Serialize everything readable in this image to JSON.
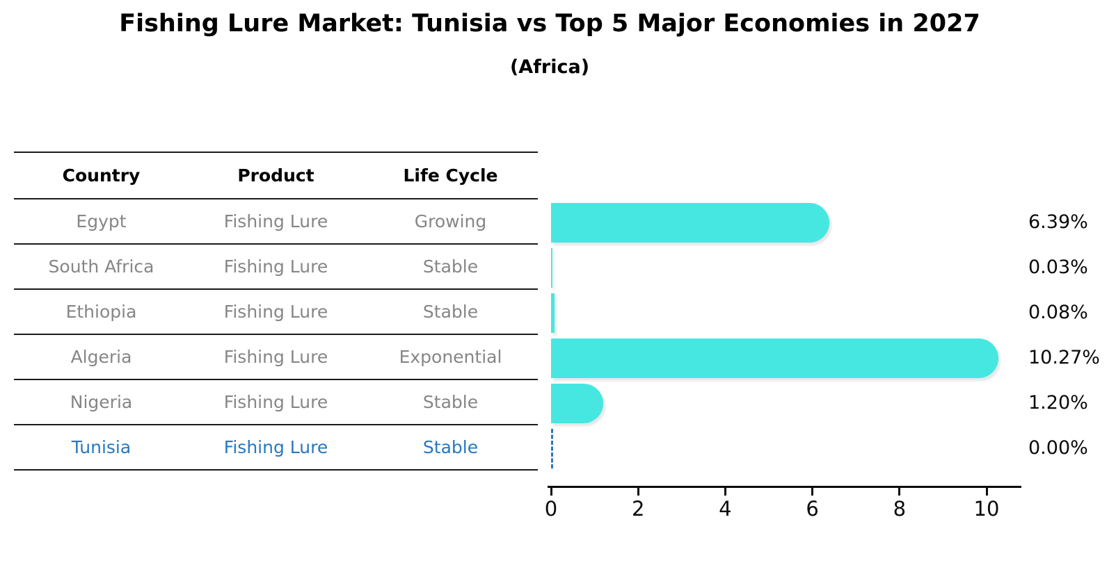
{
  "title": "Fishing Lure Market: Tunisia vs Top 5 Major Economies in 2027",
  "subtitle": "(Africa)",
  "colors": {
    "bar": "#46e7e1",
    "highlight": "#2878be",
    "table_text": "#868686",
    "axis": "#0a0a0a"
  },
  "table": {
    "headers": [
      "Country",
      "Product",
      "Life Cycle"
    ],
    "rows": [
      {
        "country": "Egypt",
        "product": "Fishing Lure",
        "life_cycle": "Growing",
        "highlight": false
      },
      {
        "country": "South Africa",
        "product": "Fishing Lure",
        "life_cycle": "Stable",
        "highlight": false
      },
      {
        "country": "Ethiopia",
        "product": "Fishing Lure",
        "life_cycle": "Stable",
        "highlight": false
      },
      {
        "country": "Algeria",
        "product": "Fishing Lure",
        "life_cycle": "Exponential",
        "highlight": false
      },
      {
        "country": "Nigeria",
        "product": "Fishing Lure",
        "life_cycle": "Stable",
        "highlight": false
      },
      {
        "country": "Tunisia",
        "product": "Fishing Lure",
        "life_cycle": "Stable",
        "highlight": true
      }
    ]
  },
  "chart_data": {
    "type": "bar",
    "orientation": "horizontal",
    "title": "Fishing Lure Market: Tunisia vs Top 5 Major Economies in 2027",
    "subtitle": "(Africa)",
    "categories": [
      "Egypt",
      "South Africa",
      "Ethiopia",
      "Algeria",
      "Nigeria",
      "Tunisia"
    ],
    "values": [
      6.39,
      0.03,
      0.08,
      10.27,
      1.2,
      0.0
    ],
    "value_labels": [
      "6.39%",
      "0.03%",
      "0.08%",
      "10.27%",
      "1.20%",
      "0.00%"
    ],
    "xlim": [
      0,
      10.8
    ],
    "xticks": [
      0,
      2,
      4,
      6,
      8,
      10
    ],
    "grid": false,
    "legend": false,
    "highlight_category": "Tunisia",
    "highlight_style": "dashed-zero-bar"
  }
}
